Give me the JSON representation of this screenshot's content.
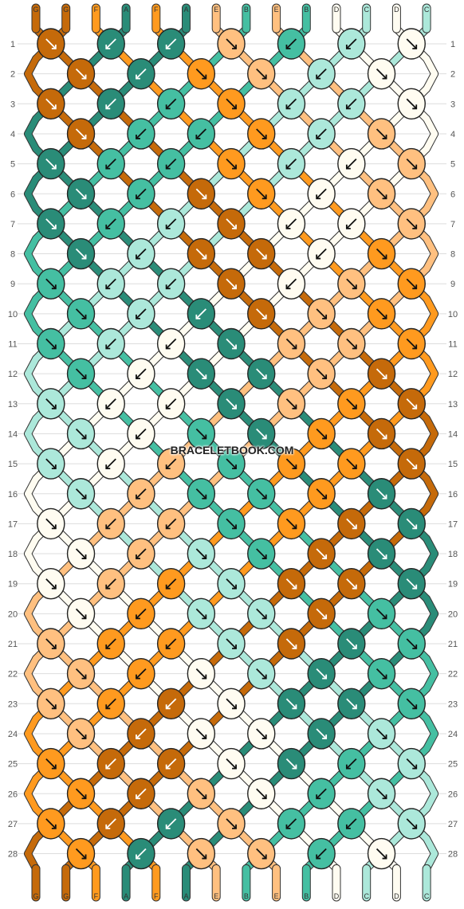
{
  "title_watermark": "BRACELETBOOK.COM",
  "colors": {
    "G": "#c56a0a",
    "F": "#ff9a1f",
    "A": "#2a8c78",
    "E": "#ffc080",
    "B": "#45bfa2",
    "D": "#fffcf1",
    "C": "#ace8da"
  },
  "strands_top": [
    "G",
    "G",
    "F",
    "A",
    "F",
    "A",
    "E",
    "B",
    "E",
    "B",
    "D",
    "C",
    "D",
    "C"
  ],
  "strands_bottom": [
    "G",
    "G",
    "F",
    "A",
    "F",
    "A",
    "E",
    "B",
    "E",
    "B",
    "D",
    "C",
    "D",
    "C"
  ],
  "row_numbers": [
    "1",
    "2",
    "3",
    "4",
    "5",
    "6",
    "7",
    "8",
    "9",
    "10",
    "11",
    "12",
    "13",
    "14",
    "15",
    "16",
    "17",
    "18",
    "19",
    "20",
    "21",
    "22",
    "23",
    "24",
    "25",
    "26",
    "27",
    "28"
  ],
  "knots": [
    [
      [
        "G",
        "rr"
      ],
      [
        "A",
        "ll"
      ],
      [
        "A",
        "ll"
      ],
      [
        "E",
        "rr"
      ],
      [
        "B",
        "ll"
      ],
      [
        "C",
        "ll"
      ],
      [
        "D",
        "rr"
      ]
    ],
    [
      [
        "G",
        "rr"
      ],
      [
        "A",
        "ll"
      ],
      [
        "F",
        "rr"
      ],
      [
        "E",
        "rr"
      ],
      [
        "C",
        "ll"
      ],
      [
        "D",
        "rr"
      ]
    ],
    [
      [
        "G",
        "rr"
      ],
      [
        "A",
        "ll"
      ],
      [
        "B",
        "ll"
      ],
      [
        "F",
        "rr"
      ],
      [
        "C",
        "ll"
      ],
      [
        "C",
        "ll"
      ],
      [
        "D",
        "rr"
      ]
    ],
    [
      [
        "G",
        "rr"
      ],
      [
        "B",
        "ll"
      ],
      [
        "B",
        "ll"
      ],
      [
        "F",
        "rr"
      ],
      [
        "C",
        "ll"
      ],
      [
        "E",
        "rr"
      ]
    ],
    [
      [
        "A",
        "rr"
      ],
      [
        "B",
        "ll"
      ],
      [
        "B",
        "ll"
      ],
      [
        "F",
        "rr"
      ],
      [
        "C",
        "ll"
      ],
      [
        "D",
        "ll"
      ],
      [
        "E",
        "rr"
      ]
    ],
    [
      [
        "A",
        "rr"
      ],
      [
        "B",
        "ll"
      ],
      [
        "G",
        "rr"
      ],
      [
        "F",
        "rr"
      ],
      [
        "D",
        "ll"
      ],
      [
        "E",
        "rr"
      ]
    ],
    [
      [
        "A",
        "rr"
      ],
      [
        "B",
        "ll"
      ],
      [
        "C",
        "ll"
      ],
      [
        "G",
        "rr"
      ],
      [
        "D",
        "ll"
      ],
      [
        "D",
        "ll"
      ],
      [
        "E",
        "rr"
      ]
    ],
    [
      [
        "A",
        "rr"
      ],
      [
        "C",
        "ll"
      ],
      [
        "G",
        "rr"
      ],
      [
        "G",
        "rr"
      ],
      [
        "D",
        "ll"
      ],
      [
        "F",
        "rr"
      ]
    ],
    [
      [
        "B",
        "rr"
      ],
      [
        "C",
        "ll"
      ],
      [
        "C",
        "ll"
      ],
      [
        "G",
        "rr"
      ],
      [
        "D",
        "ll"
      ],
      [
        "E",
        "rr"
      ],
      [
        "F",
        "rr"
      ]
    ],
    [
      [
        "B",
        "rr"
      ],
      [
        "C",
        "ll"
      ],
      [
        "A",
        "ll"
      ],
      [
        "G",
        "rr"
      ],
      [
        "E",
        "rr"
      ],
      [
        "F",
        "rr"
      ]
    ],
    [
      [
        "B",
        "rr"
      ],
      [
        "C",
        "ll"
      ],
      [
        "D",
        "ll"
      ],
      [
        "A",
        "rr"
      ],
      [
        "E",
        "rr"
      ],
      [
        "E",
        "rr"
      ],
      [
        "F",
        "rr"
      ]
    ],
    [
      [
        "B",
        "rr"
      ],
      [
        "D",
        "ll"
      ],
      [
        "A",
        "rr"
      ],
      [
        "A",
        "rr"
      ],
      [
        "E",
        "rr"
      ],
      [
        "G",
        "rr"
      ]
    ],
    [
      [
        "C",
        "rr"
      ],
      [
        "D",
        "ll"
      ],
      [
        "D",
        "ll"
      ],
      [
        "A",
        "rr"
      ],
      [
        "E",
        "rr"
      ],
      [
        "F",
        "rr"
      ],
      [
        "G",
        "rr"
      ]
    ],
    [
      [
        "C",
        "rr"
      ],
      [
        "D",
        "ll"
      ],
      [
        "B",
        "rr"
      ],
      [
        "A",
        "rr"
      ],
      [
        "F",
        "rr"
      ],
      [
        "G",
        "rr"
      ]
    ],
    [
      [
        "C",
        "rr"
      ],
      [
        "D",
        "ll"
      ],
      [
        "E",
        "ll"
      ],
      [
        "B",
        "rr"
      ],
      [
        "F",
        "rr"
      ],
      [
        "F",
        "rr"
      ],
      [
        "G",
        "rr"
      ]
    ],
    [
      [
        "C",
        "rr"
      ],
      [
        "E",
        "ll"
      ],
      [
        "B",
        "rr"
      ],
      [
        "B",
        "rr"
      ],
      [
        "F",
        "rr"
      ],
      [
        "A",
        "rr"
      ]
    ],
    [
      [
        "D",
        "rr"
      ],
      [
        "E",
        "ll"
      ],
      [
        "E",
        "ll"
      ],
      [
        "B",
        "rr"
      ],
      [
        "F",
        "rr"
      ],
      [
        "G",
        "rr"
      ],
      [
        "A",
        "rr"
      ]
    ],
    [
      [
        "D",
        "rr"
      ],
      [
        "E",
        "ll"
      ],
      [
        "C",
        "rr"
      ],
      [
        "B",
        "rr"
      ],
      [
        "G",
        "rr"
      ],
      [
        "A",
        "rr"
      ]
    ],
    [
      [
        "D",
        "rr"
      ],
      [
        "E",
        "ll"
      ],
      [
        "F",
        "ll"
      ],
      [
        "C",
        "rr"
      ],
      [
        "G",
        "rr"
      ],
      [
        "G",
        "rr"
      ],
      [
        "A",
        "rr"
      ]
    ],
    [
      [
        "D",
        "rr"
      ],
      [
        "F",
        "ll"
      ],
      [
        "C",
        "rr"
      ],
      [
        "C",
        "rr"
      ],
      [
        "G",
        "rr"
      ],
      [
        "B",
        "rr"
      ]
    ],
    [
      [
        "E",
        "rr"
      ],
      [
        "F",
        "ll"
      ],
      [
        "F",
        "ll"
      ],
      [
        "C",
        "rr"
      ],
      [
        "G",
        "rr"
      ],
      [
        "A",
        "rr"
      ],
      [
        "B",
        "rr"
      ]
    ],
    [
      [
        "E",
        "rr"
      ],
      [
        "F",
        "ll"
      ],
      [
        "D",
        "rr"
      ],
      [
        "C",
        "rr"
      ],
      [
        "A",
        "rr"
      ],
      [
        "B",
        "rr"
      ]
    ],
    [
      [
        "E",
        "rr"
      ],
      [
        "F",
        "ll"
      ],
      [
        "G",
        "ll"
      ],
      [
        "D",
        "rr"
      ],
      [
        "A",
        "rr"
      ],
      [
        "A",
        "rr"
      ],
      [
        "B",
        "rr"
      ]
    ],
    [
      [
        "E",
        "rr"
      ],
      [
        "G",
        "ll"
      ],
      [
        "D",
        "rr"
      ],
      [
        "D",
        "rr"
      ],
      [
        "A",
        "rr"
      ],
      [
        "C",
        "rr"
      ]
    ],
    [
      [
        "F",
        "rr"
      ],
      [
        "G",
        "ll"
      ],
      [
        "G",
        "ll"
      ],
      [
        "D",
        "rr"
      ],
      [
        "A",
        "rr"
      ],
      [
        "B",
        "ll"
      ],
      [
        "C",
        "rr"
      ]
    ],
    [
      [
        "F",
        "rr"
      ],
      [
        "G",
        "ll"
      ],
      [
        "E",
        "rr"
      ],
      [
        "D",
        "rr"
      ],
      [
        "B",
        "ll"
      ],
      [
        "C",
        "rr"
      ]
    ],
    [
      [
        "F",
        "rr"
      ],
      [
        "G",
        "ll"
      ],
      [
        "A",
        "ll"
      ],
      [
        "E",
        "rr"
      ],
      [
        "B",
        "ll"
      ],
      [
        "B",
        "ll"
      ],
      [
        "C",
        "rr"
      ]
    ],
    [
      [
        "F",
        "rr"
      ],
      [
        "A",
        "ll"
      ],
      [
        "E",
        "rr"
      ],
      [
        "E",
        "rr"
      ],
      [
        "B",
        "ll"
      ],
      [
        "D",
        "rr"
      ]
    ]
  ]
}
